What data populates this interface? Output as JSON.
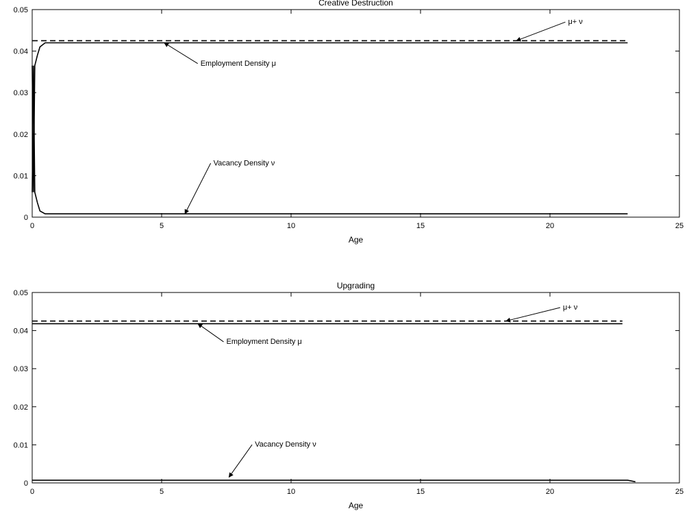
{
  "chart_data": [
    {
      "type": "line",
      "title": "Creative Destruction",
      "xlabel": "Age",
      "ylabel": "",
      "xlim": [
        0,
        25
      ],
      "ylim": [
        0,
        0.05
      ],
      "xticks": [
        0,
        5,
        10,
        15,
        20,
        25
      ],
      "xtick_labels": [
        "0",
        "5",
        "10",
        "15",
        "20",
        "25"
      ],
      "yticks": [
        0,
        0.01,
        0.02,
        0.03,
        0.04,
        0.05
      ],
      "ytick_labels": [
        "0",
        "0.01",
        "0.02",
        "0.03",
        "0.04",
        "0.05"
      ],
      "grid": false,
      "series": [
        {
          "x": [
            0,
            23
          ],
          "y": [
            0.0425,
            0.0425
          ],
          "style": "dashed"
        },
        {
          "x": [
            0,
            0.05,
            0.1,
            0.2,
            0.3,
            0.5,
            1,
            5,
            10,
            15,
            20,
            23
          ],
          "y": [
            0.0365,
            0.006,
            0.0365,
            0.039,
            0.041,
            0.042,
            0.042,
            0.042,
            0.042,
            0.042,
            0.042,
            0.042
          ],
          "style": "solid"
        },
        {
          "x": [
            0,
            0.05,
            0.1,
            0.2,
            0.3,
            0.5,
            1,
            5,
            10,
            15,
            20,
            23
          ],
          "y": [
            0.006,
            0.0365,
            0.006,
            0.0035,
            0.0015,
            0.0008,
            0.0008,
            0.0008,
            0.0008,
            0.0008,
            0.0008,
            0.0008
          ],
          "style": "solid"
        }
      ],
      "annotations": [
        {
          "text": "μ+ ν",
          "tx": 20.7,
          "ty": 0.0465,
          "ax": 18.7,
          "ay": 0.0425,
          "anchor": "start"
        },
        {
          "text": "Employment Density  μ",
          "tx": 6.5,
          "ty": 0.0365,
          "ax": 5.1,
          "ay": 0.042,
          "anchor": "start"
        },
        {
          "text": "Vacancy Density  ν",
          "tx": 7.0,
          "ty": 0.0125,
          "ax": 5.9,
          "ay": 0.0008,
          "anchor": "start"
        }
      ]
    },
    {
      "type": "line",
      "title": "Upgrading",
      "xlabel": "Age",
      "ylabel": "",
      "xlim": [
        0,
        25
      ],
      "ylim": [
        0,
        0.05
      ],
      "xticks": [
        0,
        5,
        10,
        15,
        20,
        25
      ],
      "xtick_labels": [
        "0",
        "5",
        "10",
        "15",
        "20",
        "25"
      ],
      "yticks": [
        0,
        0.01,
        0.02,
        0.03,
        0.04,
        0.05
      ],
      "ytick_labels": [
        "0",
        "0.01",
        "0.02",
        "0.03",
        "0.04",
        "0.05"
      ],
      "grid": false,
      "series": [
        {
          "x": [
            0,
            22.8
          ],
          "y": [
            0.0425,
            0.0425
          ],
          "style": "dashed"
        },
        {
          "x": [
            0,
            22.8
          ],
          "y": [
            0.0418,
            0.0418
          ],
          "style": "solid"
        },
        {
          "x": [
            0,
            23,
            23.3
          ],
          "y": [
            0.0007,
            0.0007,
            0.0003
          ],
          "style": "solid"
        }
      ],
      "annotations": [
        {
          "text": "μ+ ν",
          "tx": 20.5,
          "ty": 0.0455,
          "ax": 18.3,
          "ay": 0.0425,
          "anchor": "start"
        },
        {
          "text": "Employment Density  μ",
          "tx": 7.5,
          "ty": 0.0365,
          "ax": 6.4,
          "ay": 0.0418,
          "anchor": "start"
        },
        {
          "text": "Vacancy Density  ν",
          "tx": 8.6,
          "ty": 0.0095,
          "ax": 7.6,
          "ay": 0.0015,
          "anchor": "start"
        }
      ]
    }
  ]
}
